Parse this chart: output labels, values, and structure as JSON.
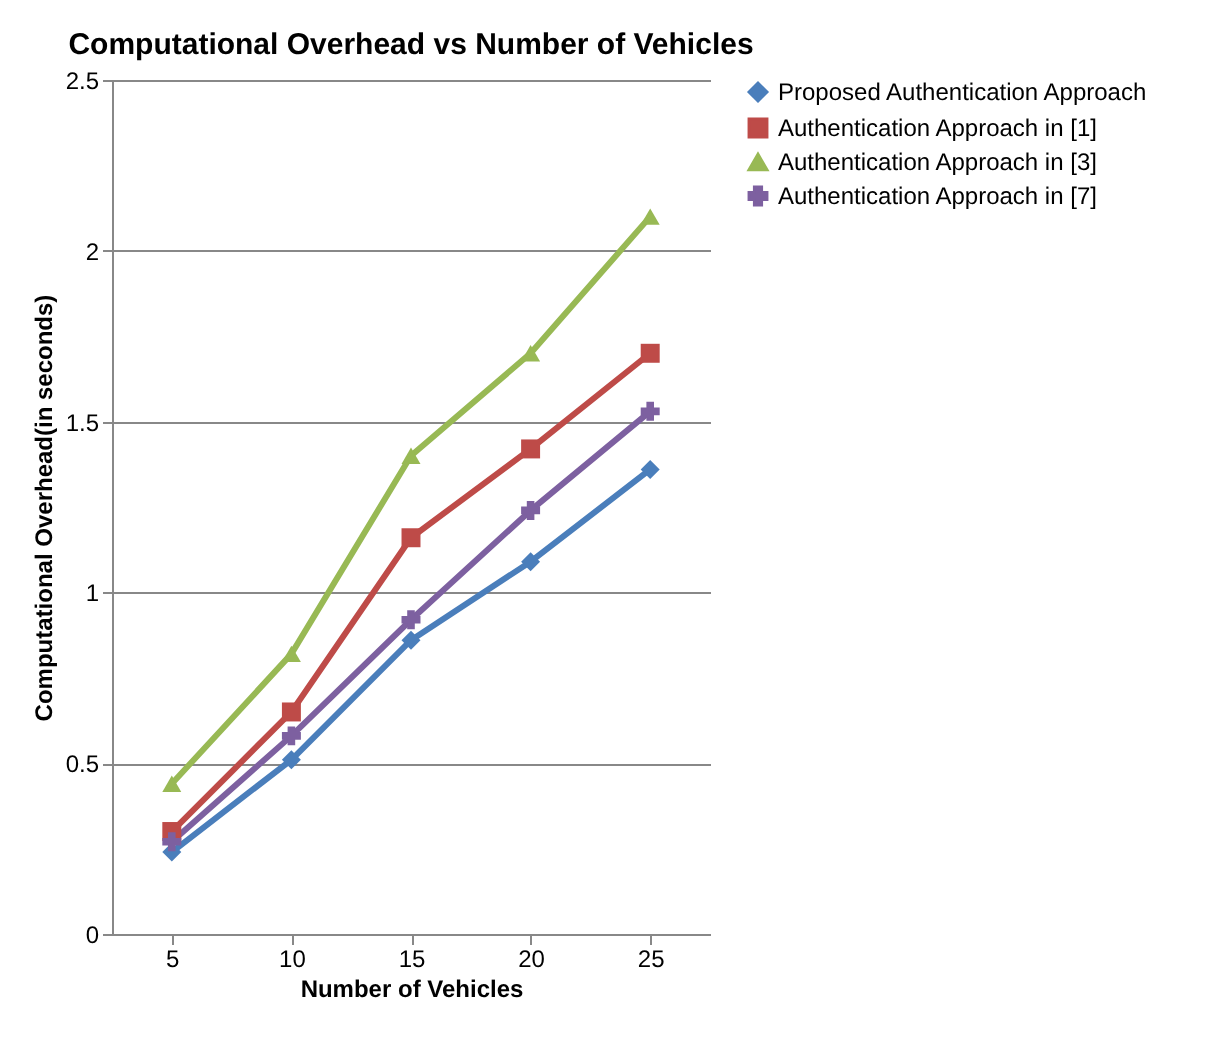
{
  "chart_data": {
    "type": "line",
    "title": "Computational Overhead vs Number of Vehicles",
    "xlabel": "Number of Vehicles",
    "ylabel": "Computational Overhead(in seconds)",
    "categories": [
      "5",
      "10",
      "15",
      "20",
      "25"
    ],
    "series": [
      {
        "name": "Proposed Authentication Approach",
        "color": "#4a7ebb",
        "marker": "diamond",
        "values": [
          0.24,
          0.51,
          0.86,
          1.09,
          1.36
        ]
      },
      {
        "name": "Authentication Approach in [1]",
        "color": "#be4b48",
        "marker": "square",
        "values": [
          0.3,
          0.65,
          1.16,
          1.42,
          1.7
        ]
      },
      {
        "name": "Authentication Approach in [3]",
        "color": "#98b954",
        "marker": "triangle",
        "values": [
          0.44,
          0.82,
          1.4,
          1.7,
          2.1
        ]
      },
      {
        "name": "Authentication Approach in [7]",
        "color": "#7d60a0",
        "marker": "cross",
        "values": [
          0.27,
          0.58,
          0.92,
          1.24,
          1.53
        ]
      }
    ],
    "ylim": [
      0,
      2.5
    ],
    "yticks": [
      0,
      0.5,
      1,
      1.5,
      2,
      2.5
    ],
    "grid": "y",
    "legend": "right"
  }
}
